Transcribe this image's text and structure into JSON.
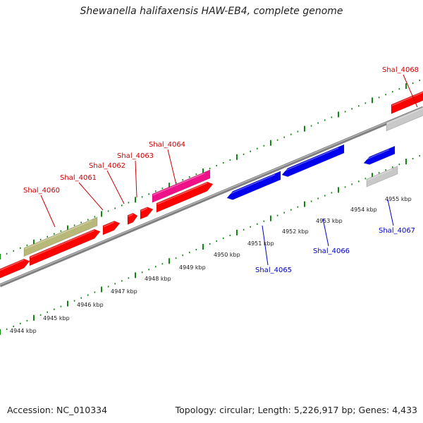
{
  "title": "Shewanella halifaxensis HAW-EB4, complete genome",
  "footer": {
    "accession": "Accession: NC_010334",
    "summary": "Topology: circular; Length: 5,226,917 bp; Genes: 4,433"
  },
  "colors": {
    "forward_gene": "#ff0000",
    "reverse_gene": "#0000ee",
    "forward_label": "#cc0000",
    "reverse_label": "#0000cc",
    "rna_gene": "#b8b878",
    "highlight_gene": "#ee1188",
    "pseudo_gene": "#c8c8c8",
    "backbone": "#808080",
    "ticks": "#118811"
  },
  "scale_labels": [
    "4944 kbp",
    "4945 kbp",
    "4946 kbp",
    "4947 kbp",
    "4948 kbp",
    "4949 kbp",
    "4950 kbp",
    "4951 kbp",
    "4952 kbp",
    "4953 kbp",
    "4954 kbp",
    "4955 kbp"
  ],
  "genes": [
    {
      "label": "Shal_4060",
      "strand": "+",
      "color": "#cc0000"
    },
    {
      "label": "Shal_4061",
      "strand": "+",
      "color": "#cc0000"
    },
    {
      "label": "Shal_4062",
      "strand": "+",
      "color": "#cc0000"
    },
    {
      "label": "Shal_4063",
      "strand": "+",
      "color": "#cc0000"
    },
    {
      "label": "Shal_4064",
      "strand": "+",
      "color": "#cc0000"
    },
    {
      "label": "Shal_4065",
      "strand": "-",
      "color": "#0000cc"
    },
    {
      "label": "Shal_4066",
      "strand": "-",
      "color": "#0000cc"
    },
    {
      "label": "Shal_4067",
      "strand": "-",
      "color": "#0000cc"
    },
    {
      "label": "Shal_4068",
      "strand": "+",
      "color": "#cc0000"
    }
  ]
}
